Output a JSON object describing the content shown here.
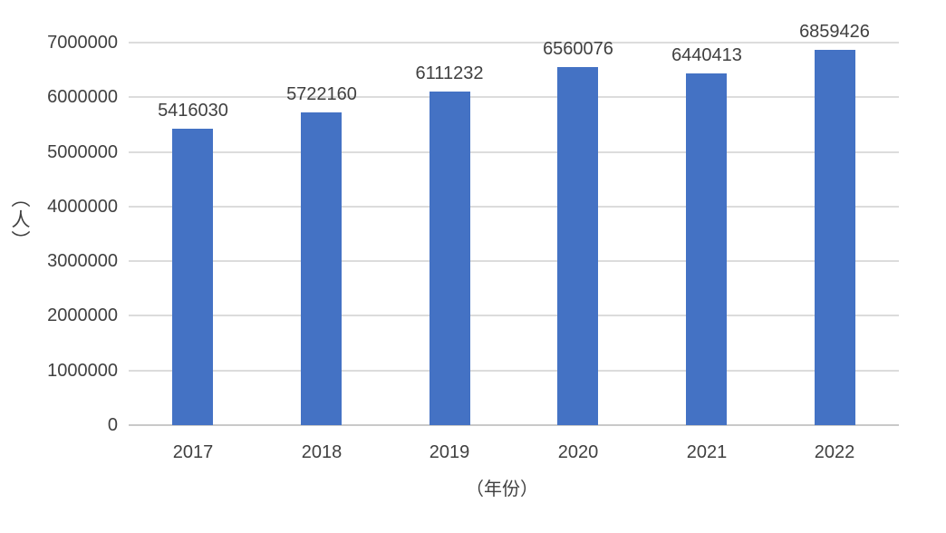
{
  "chart_data": {
    "type": "bar",
    "categories": [
      "2017",
      "2018",
      "2019",
      "2020",
      "2021",
      "2022"
    ],
    "values": [
      5416030,
      5722160,
      6111232,
      6560076,
      6440413,
      6859426
    ],
    "title": "",
    "xlabel": "（年份）",
    "ylabel": "（人）",
    "ylim": [
      0,
      7000000
    ],
    "ytick_step": 1000000,
    "ytick_labels": [
      "0",
      "1000000",
      "2000000",
      "3000000",
      "4000000",
      "5000000",
      "6000000",
      "7000000"
    ],
    "data_labels_shown": true,
    "legend": "none",
    "grid": "horizontal",
    "colors": {
      "bar": "#4472C4",
      "gridline": "#dcdcdc",
      "axis_baseline": "#c9c9c9",
      "text": "#404040",
      "background": "#ffffff"
    }
  }
}
